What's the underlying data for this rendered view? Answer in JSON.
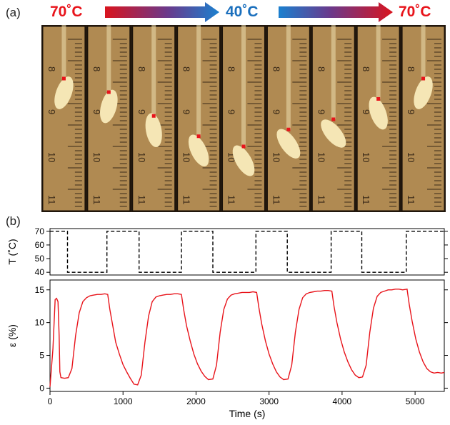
{
  "panel_a": {
    "label": "(a)",
    "temp_left": "70˚C",
    "temp_middle": "40˚C",
    "temp_right": "70˚C",
    "colors": {
      "hot": "#e8141b",
      "cold": "#1a6fbd",
      "arrow_start_red": "#d9141e",
      "arrow_mid": "#6a3a8c",
      "arrow_end_blue": "#1b80cf"
    },
    "ruler_labels": [
      "8",
      "9",
      "10",
      "11"
    ],
    "frame_count": 9
  },
  "panel_b": {
    "label": "(b)"
  },
  "chart_data": [
    {
      "type": "line",
      "title": "",
      "xlabel": "",
      "ylabel": "T (˚C)",
      "xlim": [
        0,
        5400
      ],
      "ylim": [
        38,
        72
      ],
      "yticks": [
        "70",
        "60",
        "50",
        "40"
      ],
      "ytick_values": [
        70,
        60,
        50,
        40
      ],
      "grid": false,
      "style": "dashed",
      "color": "#000000",
      "series": [
        {
          "x": [
            0,
            240,
            240,
            780,
            780,
            1220,
            1220,
            1800,
            1800,
            2230,
            2230,
            2820,
            2820,
            3250,
            3250,
            3850,
            3850,
            4270,
            4270,
            4880,
            4880,
            5400
          ],
          "y": [
            70,
            70,
            40,
            40,
            70,
            70,
            40,
            40,
            70,
            70,
            40,
            40,
            70,
            70,
            40,
            40,
            70,
            70,
            40,
            40,
            70,
            70
          ]
        }
      ]
    },
    {
      "type": "line",
      "title": "",
      "xlabel": "Time (s)",
      "ylabel": "ε (%)",
      "xlim": [
        0,
        5400
      ],
      "ylim": [
        -0.5,
        16.5
      ],
      "xticks": [
        "0",
        "1000",
        "2000",
        "3000",
        "4000",
        "5000"
      ],
      "xtick_values": [
        0,
        1000,
        2000,
        3000,
        4000,
        5000
      ],
      "yticks": [
        "15",
        "10",
        "5",
        "0"
      ],
      "ytick_values": [
        15,
        10,
        5,
        0
      ],
      "grid": false,
      "color": "#e8141b",
      "series": [
        {
          "x": [
            0,
            40,
            70,
            90,
            110,
            125,
            135,
            150,
            200,
            250,
            300,
            350,
            400,
            450,
            500,
            550,
            600,
            650,
            700,
            750,
            790,
            820,
            860,
            900,
            950,
            1000,
            1050,
            1100,
            1150,
            1200,
            1250,
            1300,
            1350,
            1400,
            1450,
            1500,
            1550,
            1600,
            1650,
            1700,
            1750,
            1800,
            1830,
            1870,
            1920,
            1970,
            2020,
            2070,
            2120,
            2170,
            2230,
            2280,
            2330,
            2380,
            2430,
            2480,
            2530,
            2580,
            2630,
            2680,
            2730,
            2780,
            2830,
            2860,
            2900,
            2950,
            3000,
            3050,
            3100,
            3150,
            3200,
            3260,
            3310,
            3360,
            3410,
            3460,
            3510,
            3560,
            3610,
            3660,
            3710,
            3760,
            3810,
            3860,
            3890,
            3930,
            3980,
            4030,
            4080,
            4130,
            4180,
            4230,
            4280,
            4330,
            4380,
            4430,
            4480,
            4530,
            4580,
            4630,
            4680,
            4730,
            4780,
            4830,
            4890,
            4920,
            4960,
            5010,
            5060,
            5110,
            5160,
            5210,
            5260,
            5310,
            5360,
            5400
          ],
          "y": [
            0.2,
            6,
            13.5,
            13.7,
            13.2,
            8,
            2.5,
            1.6,
            1.5,
            1.6,
            3,
            8,
            11.5,
            13.2,
            13.8,
            14.1,
            14.2,
            14.3,
            14.3,
            14.4,
            14.3,
            12,
            9.5,
            7,
            5.2,
            3.6,
            2.5,
            1.5,
            0.6,
            0.5,
            2,
            7,
            11,
            13.2,
            13.9,
            14.1,
            14.2,
            14.3,
            14.3,
            14.4,
            14.4,
            14.3,
            12,
            9.5,
            7.2,
            5.2,
            3.7,
            2.6,
            1.8,
            1.3,
            1.4,
            3.5,
            8.5,
            12,
            13.6,
            14.2,
            14.4,
            14.5,
            14.6,
            14.6,
            14.6,
            14.7,
            14.6,
            12.3,
            9.8,
            7.2,
            5.2,
            3.7,
            2.5,
            1.7,
            1.3,
            1.4,
            3.5,
            8.5,
            12,
            13.8,
            14.4,
            14.6,
            14.7,
            14.8,
            14.8,
            14.9,
            14.9,
            14.8,
            12.5,
            10,
            7.5,
            5.5,
            4,
            2.8,
            2.0,
            1.6,
            1.7,
            3.5,
            8.5,
            12.2,
            14,
            14.6,
            14.8,
            15.0,
            15.0,
            15.1,
            15.1,
            15.0,
            15.1,
            12.8,
            10.2,
            7.5,
            5.5,
            4.0,
            3.0,
            2.5,
            2.3,
            2.4,
            2.3,
            2.4
          ]
        }
      ]
    }
  ]
}
